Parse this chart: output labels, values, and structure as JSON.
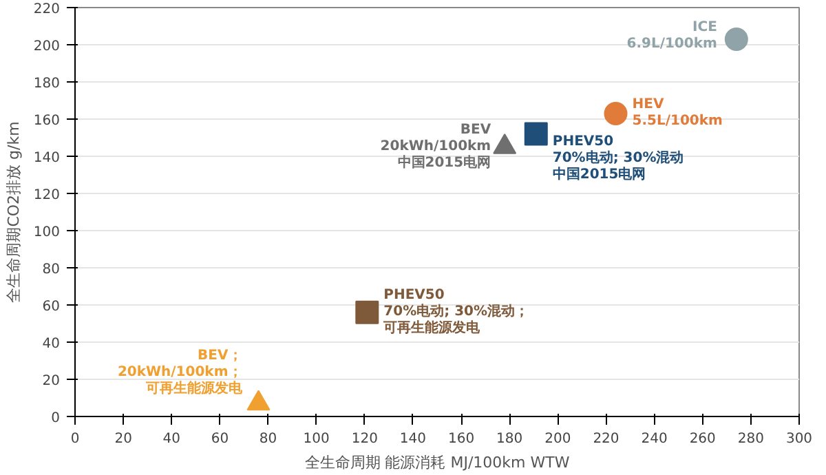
{
  "chart_data": {
    "type": "scatter",
    "xlabel": "全生命周期 能源消耗 MJ/100km WTW",
    "ylabel": "全生命周期CO2排放 g/km",
    "xlim": [
      0,
      300
    ],
    "ylim": [
      0,
      220
    ],
    "xticks": [
      0,
      20,
      40,
      60,
      80,
      100,
      120,
      140,
      160,
      180,
      200,
      220,
      240,
      260,
      280,
      300
    ],
    "yticks": [
      0,
      20,
      40,
      60,
      80,
      100,
      120,
      140,
      160,
      180,
      200,
      220
    ],
    "grid": "y",
    "series": [
      {
        "name": "ICE",
        "color": "#8fa3a8",
        "marker": "circle",
        "x": [
          274
        ],
        "values": [
          203
        ]
      },
      {
        "name": "HEV",
        "color": "#e07b39",
        "marker": "circle",
        "x": [
          224
        ],
        "values": [
          163
        ]
      },
      {
        "name": "PHEV50",
        "color": "#1f4e79",
        "marker": "square",
        "x": [
          191
        ],
        "values": [
          152
        ]
      },
      {
        "name": "BEV",
        "color": "#6f6f6f",
        "marker": "triangle",
        "x": [
          178
        ],
        "values": [
          145
        ]
      },
      {
        "name": "PHEV50",
        "color": "#7f5a3a",
        "marker": "square",
        "x": [
          121
        ],
        "values": [
          56
        ]
      },
      {
        "name": "BEV；",
        "color": "#f0a030",
        "marker": "triangle",
        "x": [
          76
        ],
        "values": [
          7
        ]
      }
    ],
    "annotations": [
      {
        "text": "6.9L/100km",
        "x": 274,
        "y": 203
      },
      {
        "text": "5.5L/100km",
        "x": 224,
        "y": 163
      },
      {
        "text": "70%电动; 30%混动",
        "x": 191,
        "y": 152
      },
      {
        "text": "中国2015电网",
        "x": 191,
        "y": 152
      },
      {
        "text": "20kWh/100km",
        "x": 178,
        "y": 145
      },
      {
        "text": "中国2015电网",
        "x": 178,
        "y": 145
      },
      {
        "text": "70%电动; 30%混动；",
        "x": 121,
        "y": 56
      },
      {
        "text": "可再生能源发电",
        "x": 121,
        "y": 56
      },
      {
        "text": "20kWh/100km；",
        "x": 76,
        "y": 7
      },
      {
        "text": "可再生能源发电",
        "x": 76,
        "y": 7
      }
    ]
  }
}
